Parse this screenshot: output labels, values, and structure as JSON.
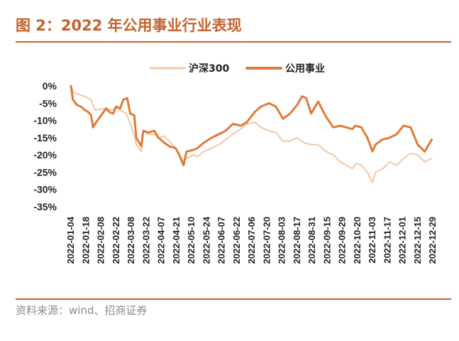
{
  "figure": {
    "title": "图 2：2022 年公用事业行业表现",
    "source": "资料来源：wind、招商证券"
  },
  "chart_data": {
    "type": "line",
    "title": "",
    "xlabel": "",
    "ylabel": "",
    "ylim": [
      -35,
      0
    ],
    "yticks": [
      0,
      -5,
      -10,
      -15,
      -20,
      -25,
      -30,
      -35
    ],
    "ytick_labels": [
      "0%",
      "-5%",
      "-10%",
      "-15%",
      "-20%",
      "-25%",
      "-30%",
      "-35%"
    ],
    "xlim": [
      "2022-01-04",
      "2022-12-30"
    ],
    "x_tick_labels": [
      "2022-01-04",
      "2022-01-18",
      "2022-02-08",
      "2022-02-22",
      "2022-03-08",
      "2022-03-22",
      "2022-04-07",
      "2022-04-21",
      "2022-05-10",
      "2022-05-24",
      "2022-06-07",
      "2022-06-22",
      "2022-07-06",
      "2022-07-20",
      "2022-08-03",
      "2022-08-17",
      "2022-08-31",
      "2022-09-15",
      "2022-09-29",
      "2022-10-20",
      "2022-11-03",
      "2022-11-17",
      "2022-12-01",
      "2022-12-15",
      "2022-12-29"
    ],
    "legend_position": "top-center",
    "grid": false,
    "series": [
      {
        "name": "沪深300",
        "color": "#f4c6a6",
        "stroke_width": 2,
        "points": [
          [
            "2022-01-04",
            0
          ],
          [
            "2022-01-07",
            -2
          ],
          [
            "2022-01-12",
            -2.5
          ],
          [
            "2022-01-18",
            -3
          ],
          [
            "2022-01-24",
            -4
          ],
          [
            "2022-01-28",
            -7
          ],
          [
            "2022-02-08",
            -6.5
          ],
          [
            "2022-02-14",
            -7
          ],
          [
            "2022-02-18",
            -6
          ],
          [
            "2022-02-22",
            -7
          ],
          [
            "2022-02-28",
            -8
          ],
          [
            "2022-03-04",
            -11
          ],
          [
            "2022-03-08",
            -14.5
          ],
          [
            "2022-03-10",
            -17
          ],
          [
            "2022-03-15",
            -19
          ],
          [
            "2022-03-17",
            -13
          ],
          [
            "2022-03-22",
            -14
          ],
          [
            "2022-03-28",
            -14
          ],
          [
            "2022-04-01",
            -15
          ],
          [
            "2022-04-07",
            -14.5
          ],
          [
            "2022-04-12",
            -16
          ],
          [
            "2022-04-18",
            -18
          ],
          [
            "2022-04-21",
            -19.5
          ],
          [
            "2022-04-26",
            -22
          ],
          [
            "2022-04-29",
            -21
          ],
          [
            "2022-05-06",
            -20
          ],
          [
            "2022-05-10",
            -20.5
          ],
          [
            "2022-05-16",
            -19
          ],
          [
            "2022-05-24",
            -18
          ],
          [
            "2022-05-31",
            -17
          ],
          [
            "2022-06-07",
            -15.5
          ],
          [
            "2022-06-14",
            -14
          ],
          [
            "2022-06-22",
            -12.5
          ],
          [
            "2022-06-28",
            -11
          ],
          [
            "2022-07-06",
            -10.5
          ],
          [
            "2022-07-12",
            -12
          ],
          [
            "2022-07-20",
            -13
          ],
          [
            "2022-07-27",
            -13.5
          ],
          [
            "2022-08-03",
            -16
          ],
          [
            "2022-08-10",
            -16
          ],
          [
            "2022-08-17",
            -15
          ],
          [
            "2022-08-24",
            -16.5
          ],
          [
            "2022-08-31",
            -17
          ],
          [
            "2022-09-07",
            -17
          ],
          [
            "2022-09-15",
            -19
          ],
          [
            "2022-09-22",
            -20
          ],
          [
            "2022-09-29",
            -22
          ],
          [
            "2022-10-11",
            -24
          ],
          [
            "2022-10-14",
            -22.5
          ],
          [
            "2022-10-20",
            -23
          ],
          [
            "2022-10-26",
            -25
          ],
          [
            "2022-10-31",
            -28
          ],
          [
            "2022-11-03",
            -25
          ],
          [
            "2022-11-10",
            -24
          ],
          [
            "2022-11-17",
            -22
          ],
          [
            "2022-11-24",
            -23
          ],
          [
            "2022-12-01",
            -21
          ],
          [
            "2022-12-08",
            -19.5
          ],
          [
            "2022-12-15",
            -20
          ],
          [
            "2022-12-22",
            -22
          ],
          [
            "2022-12-29",
            -21
          ]
        ]
      },
      {
        "name": "公用事业",
        "color": "#e07b39",
        "stroke_width": 3,
        "points": [
          [
            "2022-01-04",
            0
          ],
          [
            "2022-01-06",
            -4
          ],
          [
            "2022-01-10",
            -5.5
          ],
          [
            "2022-01-14",
            -6
          ],
          [
            "2022-01-18",
            -7
          ],
          [
            "2022-01-21",
            -7.5
          ],
          [
            "2022-01-24",
            -8.5
          ],
          [
            "2022-01-26",
            -12
          ],
          [
            "2022-01-28",
            -11
          ],
          [
            "2022-02-08",
            -6.5
          ],
          [
            "2022-02-11",
            -7.5
          ],
          [
            "2022-02-15",
            -8
          ],
          [
            "2022-02-18",
            -6
          ],
          [
            "2022-02-22",
            -6.5
          ],
          [
            "2022-02-25",
            -4
          ],
          [
            "2022-03-01",
            -3.5
          ],
          [
            "2022-03-04",
            -8
          ],
          [
            "2022-03-08",
            -8.5
          ],
          [
            "2022-03-10",
            -15
          ],
          [
            "2022-03-15",
            -17.5
          ],
          [
            "2022-03-17",
            -13
          ],
          [
            "2022-03-22",
            -13.5
          ],
          [
            "2022-03-28",
            -13
          ],
          [
            "2022-04-01",
            -15
          ],
          [
            "2022-04-07",
            -16.5
          ],
          [
            "2022-04-12",
            -17.5
          ],
          [
            "2022-04-18",
            -18
          ],
          [
            "2022-04-21",
            -19.5
          ],
          [
            "2022-04-26",
            -23
          ],
          [
            "2022-04-29",
            -19
          ],
          [
            "2022-05-06",
            -18.5
          ],
          [
            "2022-05-10",
            -18
          ],
          [
            "2022-05-16",
            -16.5
          ],
          [
            "2022-05-24",
            -15
          ],
          [
            "2022-05-31",
            -14
          ],
          [
            "2022-06-07",
            -13
          ],
          [
            "2022-06-14",
            -11
          ],
          [
            "2022-06-22",
            -11.5
          ],
          [
            "2022-06-28",
            -10.5
          ],
          [
            "2022-07-06",
            -7.5
          ],
          [
            "2022-07-12",
            -6
          ],
          [
            "2022-07-20",
            -5
          ],
          [
            "2022-07-27",
            -6
          ],
          [
            "2022-08-03",
            -9.5
          ],
          [
            "2022-08-10",
            -8
          ],
          [
            "2022-08-17",
            -5.5
          ],
          [
            "2022-08-22",
            -3
          ],
          [
            "2022-08-26",
            -3.5
          ],
          [
            "2022-08-31",
            -8
          ],
          [
            "2022-09-07",
            -4.5
          ],
          [
            "2022-09-15",
            -9
          ],
          [
            "2022-09-22",
            -12
          ],
          [
            "2022-09-29",
            -11.5
          ],
          [
            "2022-10-11",
            -12.5
          ],
          [
            "2022-10-14",
            -11.5
          ],
          [
            "2022-10-20",
            -12
          ],
          [
            "2022-10-26",
            -15
          ],
          [
            "2022-10-31",
            -19
          ],
          [
            "2022-11-03",
            -17
          ],
          [
            "2022-11-10",
            -15.5
          ],
          [
            "2022-11-17",
            -15
          ],
          [
            "2022-11-24",
            -14
          ],
          [
            "2022-12-01",
            -11.5
          ],
          [
            "2022-12-08",
            -12
          ],
          [
            "2022-12-15",
            -17
          ],
          [
            "2022-12-22",
            -19
          ],
          [
            "2022-12-29",
            -15.5
          ]
        ]
      }
    ]
  }
}
